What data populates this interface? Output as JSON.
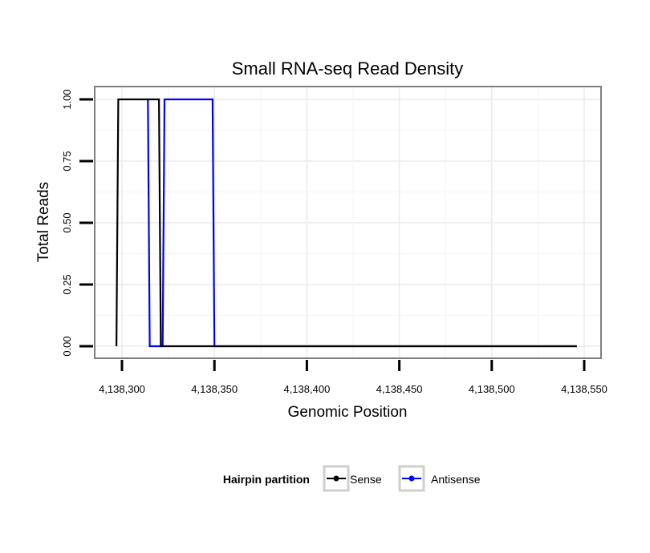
{
  "chart_data": {
    "type": "line",
    "title": "Small RNA-seq Read Density",
    "xlabel": "Genomic Position",
    "ylabel": "Total Reads",
    "xlim": [
      4138293,
      4138550
    ],
    "ylim": [
      0,
      1
    ],
    "x_ticks": [
      4138300,
      4138350,
      4138400,
      4138450,
      4138500,
      4138550
    ],
    "x_tick_labels": [
      "4,138,300",
      "4,138,350",
      "4,138,400",
      "4,138,450",
      "4,138,500",
      "4,138,550"
    ],
    "y_ticks": [
      0,
      0.25,
      0.5,
      0.75,
      1
    ],
    "y_tick_labels": [
      "0.00",
      "0.25",
      "0.50",
      "0.75",
      "1.00"
    ],
    "grid": true,
    "legend": {
      "title": "Hairpin partition",
      "position": "bottom"
    },
    "series": [
      {
        "name": "Sense",
        "color": "#000000",
        "x": [
          4138297,
          4138298,
          4138320,
          4138321,
          4138546
        ],
        "y": [
          0,
          1,
          1,
          0,
          0
        ]
      },
      {
        "name": "Antisense",
        "color": "#0000ff",
        "x": [
          4138314,
          4138315,
          4138322,
          4138323,
          4138349,
          4138350,
          4138546
        ],
        "y": [
          1,
          0,
          0,
          1,
          1,
          0,
          0
        ]
      }
    ]
  }
}
